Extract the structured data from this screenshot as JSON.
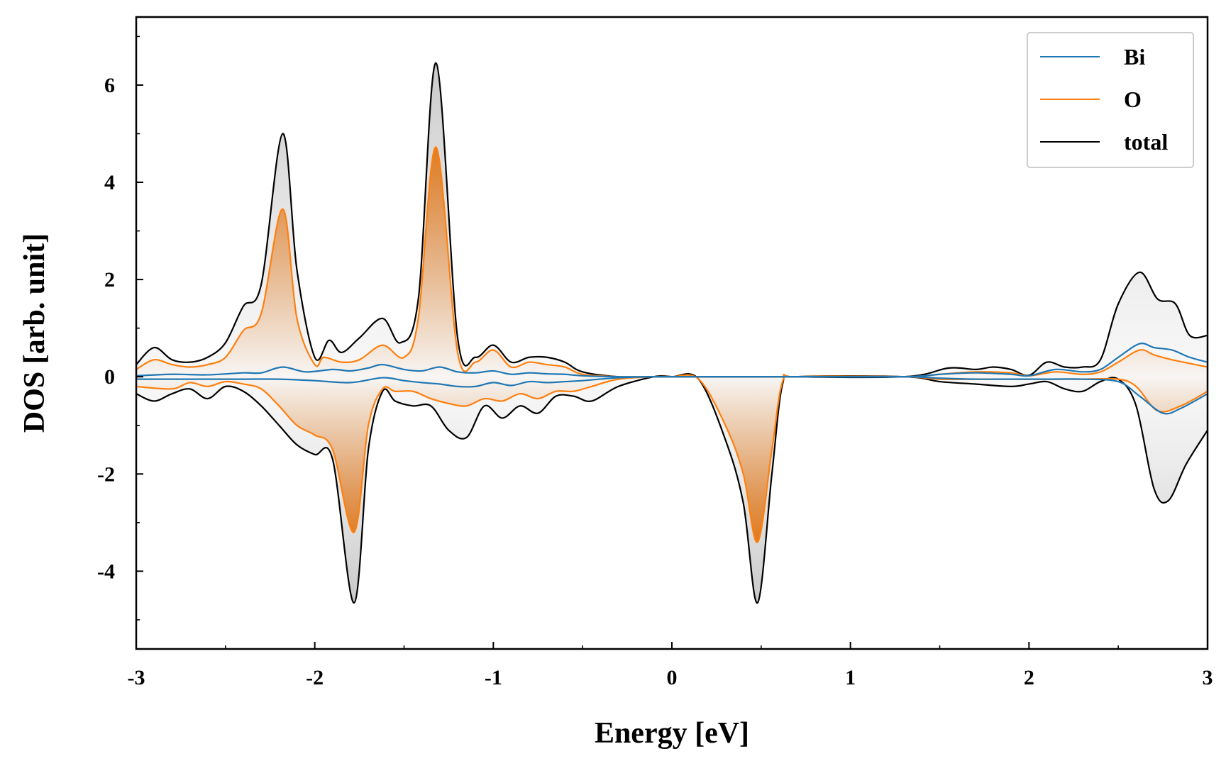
{
  "chart_data": {
    "type": "area",
    "title": "",
    "xlabel": "Energy [eV]",
    "ylabel": "DOS [arb. unit]",
    "xlim": [
      -3,
      3
    ],
    "ylim": [
      -5.6,
      7.4
    ],
    "xticks": [
      -3,
      -2,
      -1,
      0,
      1,
      2,
      3
    ],
    "xtick_labels": [
      "-3",
      "-2",
      "-1",
      "0",
      "1",
      "2",
      "3"
    ],
    "yticks": [
      -4,
      -2,
      0,
      2,
      4,
      6
    ],
    "ytick_labels": [
      "-4",
      "-2",
      "0",
      "2",
      "4",
      "6"
    ],
    "grid": false,
    "legend": {
      "position": "top-right",
      "entries": [
        "Bi",
        "O",
        "total"
      ]
    },
    "colors": {
      "Bi": "#1f77b4",
      "O": "#ff7f0e",
      "total": "#000000",
      "O_fill": "#e07a1f",
      "total_fill": "#d9d9d9"
    },
    "series": [
      {
        "name": "Bi",
        "spin_up": [
          [
            -3,
            0.02
          ],
          [
            -2.8,
            0.05
          ],
          [
            -2.6,
            0.04
          ],
          [
            -2.4,
            0.08
          ],
          [
            -2.3,
            0.08
          ],
          [
            -2.18,
            0.2
          ],
          [
            -2.05,
            0.1
          ],
          [
            -1.9,
            0.15
          ],
          [
            -1.8,
            0.12
          ],
          [
            -1.7,
            0.18
          ],
          [
            -1.62,
            0.25
          ],
          [
            -1.5,
            0.15
          ],
          [
            -1.4,
            0.12
          ],
          [
            -1.3,
            0.2
          ],
          [
            -1.2,
            0.1
          ],
          [
            -1.1,
            0.08
          ],
          [
            -1.0,
            0.12
          ],
          [
            -0.9,
            0.05
          ],
          [
            -0.8,
            0.08
          ],
          [
            -0.7,
            0.06
          ],
          [
            -0.6,
            0.05
          ],
          [
            -0.5,
            0.02
          ],
          [
            -0.3,
            0.0
          ],
          [
            -0.1,
            0.0
          ],
          [
            0,
            0
          ],
          [
            0.6,
            0
          ],
          [
            1.3,
            0
          ],
          [
            1.5,
            0.05
          ],
          [
            1.7,
            0.08
          ],
          [
            1.9,
            0.05
          ],
          [
            2.0,
            0.02
          ],
          [
            2.15,
            0.15
          ],
          [
            2.3,
            0.1
          ],
          [
            2.4,
            0.15
          ],
          [
            2.5,
            0.4
          ],
          [
            2.62,
            0.68
          ],
          [
            2.7,
            0.6
          ],
          [
            2.8,
            0.55
          ],
          [
            2.9,
            0.4
          ],
          [
            3,
            0.3
          ]
        ],
        "spin_down": [
          [
            -3,
            -0.05
          ],
          [
            -2.8,
            -0.05
          ],
          [
            -2.6,
            -0.05
          ],
          [
            -2.4,
            -0.05
          ],
          [
            -2.2,
            -0.05
          ],
          [
            -2.0,
            -0.08
          ],
          [
            -1.8,
            -0.12
          ],
          [
            -1.62,
            -0.02
          ],
          [
            -1.5,
            -0.08
          ],
          [
            -1.4,
            -0.12
          ],
          [
            -1.3,
            -0.15
          ],
          [
            -1.2,
            -0.2
          ],
          [
            -1.1,
            -0.2
          ],
          [
            -1.0,
            -0.12
          ],
          [
            -0.9,
            -0.18
          ],
          [
            -0.8,
            -0.1
          ],
          [
            -0.7,
            -0.12
          ],
          [
            -0.6,
            -0.1
          ],
          [
            -0.5,
            -0.08
          ],
          [
            -0.3,
            -0.02
          ],
          [
            -0.1,
            0.0
          ],
          [
            0,
            0
          ],
          [
            0.6,
            0
          ],
          [
            1.3,
            0
          ],
          [
            1.5,
            -0.03
          ],
          [
            1.7,
            -0.05
          ],
          [
            1.9,
            -0.05
          ],
          [
            2.1,
            -0.05
          ],
          [
            2.3,
            -0.05
          ],
          [
            2.5,
            -0.1
          ],
          [
            2.62,
            -0.4
          ],
          [
            2.75,
            -0.75
          ],
          [
            2.85,
            -0.65
          ],
          [
            3,
            -0.35
          ]
        ]
      },
      {
        "name": "O",
        "spin_up": [
          [
            -3,
            0.15
          ],
          [
            -2.9,
            0.35
          ],
          [
            -2.8,
            0.25
          ],
          [
            -2.7,
            0.2
          ],
          [
            -2.6,
            0.25
          ],
          [
            -2.5,
            0.4
          ],
          [
            -2.4,
            0.95
          ],
          [
            -2.3,
            1.3
          ],
          [
            -2.18,
            3.45
          ],
          [
            -2.1,
            1.2
          ],
          [
            -2.0,
            0.25
          ],
          [
            -1.95,
            0.4
          ],
          [
            -1.85,
            0.3
          ],
          [
            -1.75,
            0.35
          ],
          [
            -1.62,
            0.65
          ],
          [
            -1.5,
            0.4
          ],
          [
            -1.42,
            1.2
          ],
          [
            -1.32,
            4.72
          ],
          [
            -1.2,
            0.5
          ],
          [
            -1.1,
            0.3
          ],
          [
            -1.0,
            0.55
          ],
          [
            -0.9,
            0.2
          ],
          [
            -0.8,
            0.3
          ],
          [
            -0.7,
            0.25
          ],
          [
            -0.6,
            0.2
          ],
          [
            -0.5,
            0.05
          ],
          [
            -0.3,
            0.0
          ],
          [
            -0.1,
            0.0
          ],
          [
            0,
            0
          ],
          [
            0.6,
            0
          ],
          [
            1.3,
            0
          ],
          [
            1.5,
            0.05
          ],
          [
            1.7,
            0.1
          ],
          [
            1.9,
            0.08
          ],
          [
            2.0,
            0.02
          ],
          [
            2.15,
            0.1
          ],
          [
            2.3,
            0.05
          ],
          [
            2.4,
            0.1
          ],
          [
            2.5,
            0.3
          ],
          [
            2.62,
            0.55
          ],
          [
            2.7,
            0.45
          ],
          [
            2.8,
            0.35
          ],
          [
            3,
            0.2
          ]
        ],
        "spin_down": [
          [
            -3,
            -0.2
          ],
          [
            -2.8,
            -0.25
          ],
          [
            -2.7,
            -0.12
          ],
          [
            -2.6,
            -0.2
          ],
          [
            -2.5,
            -0.1
          ],
          [
            -2.4,
            -0.15
          ],
          [
            -2.3,
            -0.25
          ],
          [
            -2.2,
            -0.6
          ],
          [
            -2.1,
            -1.0
          ],
          [
            -2.0,
            -1.2
          ],
          [
            -1.9,
            -1.5
          ],
          [
            -1.78,
            -3.2
          ],
          [
            -1.7,
            -1.0
          ],
          [
            -1.62,
            -0.25
          ],
          [
            -1.55,
            -0.3
          ],
          [
            -1.45,
            -0.3
          ],
          [
            -1.35,
            -0.45
          ],
          [
            -1.25,
            -0.55
          ],
          [
            -1.15,
            -0.6
          ],
          [
            -1.05,
            -0.45
          ],
          [
            -0.95,
            -0.5
          ],
          [
            -0.85,
            -0.35
          ],
          [
            -0.75,
            -0.45
          ],
          [
            -0.65,
            -0.3
          ],
          [
            -0.55,
            -0.3
          ],
          [
            -0.45,
            -0.2
          ],
          [
            -0.3,
            -0.05
          ],
          [
            -0.1,
            0.0
          ],
          [
            0,
            0
          ],
          [
            0.15,
            -0.05
          ],
          [
            0.3,
            -1.0
          ],
          [
            0.4,
            -2.0
          ],
          [
            0.48,
            -3.4
          ],
          [
            0.56,
            -1.5
          ],
          [
            0.62,
            -0.1
          ],
          [
            0.7,
            0
          ],
          [
            1.3,
            0
          ],
          [
            1.5,
            -0.05
          ],
          [
            1.7,
            -0.05
          ],
          [
            1.9,
            -0.05
          ],
          [
            2.1,
            -0.05
          ],
          [
            2.3,
            -0.05
          ],
          [
            2.5,
            -0.05
          ],
          [
            2.6,
            -0.2
          ],
          [
            2.72,
            -0.7
          ],
          [
            2.85,
            -0.6
          ],
          [
            3,
            -0.3
          ]
        ]
      },
      {
        "name": "total",
        "spin_up": [
          [
            -3,
            0.25
          ],
          [
            -2.9,
            0.6
          ],
          [
            -2.8,
            0.35
          ],
          [
            -2.7,
            0.3
          ],
          [
            -2.6,
            0.4
          ],
          [
            -2.5,
            0.7
          ],
          [
            -2.4,
            1.45
          ],
          [
            -2.3,
            1.9
          ],
          [
            -2.18,
            5.0
          ],
          [
            -2.1,
            2.2
          ],
          [
            -2.0,
            0.4
          ],
          [
            -1.92,
            0.75
          ],
          [
            -1.85,
            0.5
          ],
          [
            -1.75,
            0.8
          ],
          [
            -1.62,
            1.2
          ],
          [
            -1.52,
            0.7
          ],
          [
            -1.42,
            1.6
          ],
          [
            -1.32,
            6.45
          ],
          [
            -1.2,
            0.8
          ],
          [
            -1.1,
            0.4
          ],
          [
            -1.0,
            0.65
          ],
          [
            -0.9,
            0.3
          ],
          [
            -0.8,
            0.4
          ],
          [
            -0.7,
            0.4
          ],
          [
            -0.6,
            0.3
          ],
          [
            -0.5,
            0.1
          ],
          [
            -0.3,
            0.0
          ],
          [
            -0.1,
            0.0
          ],
          [
            0,
            0
          ],
          [
            0.6,
            0
          ],
          [
            1.3,
            0
          ],
          [
            1.55,
            0.18
          ],
          [
            1.7,
            0.15
          ],
          [
            1.8,
            0.2
          ],
          [
            1.9,
            0.15
          ],
          [
            2.0,
            0.03
          ],
          [
            2.1,
            0.3
          ],
          [
            2.2,
            0.2
          ],
          [
            2.3,
            0.2
          ],
          [
            2.4,
            0.35
          ],
          [
            2.5,
            1.5
          ],
          [
            2.62,
            2.15
          ],
          [
            2.72,
            1.6
          ],
          [
            2.82,
            1.5
          ],
          [
            2.9,
            0.85
          ],
          [
            3,
            0.85
          ]
        ],
        "spin_down": [
          [
            -3,
            -0.35
          ],
          [
            -2.9,
            -0.5
          ],
          [
            -2.8,
            -0.35
          ],
          [
            -2.7,
            -0.25
          ],
          [
            -2.6,
            -0.45
          ],
          [
            -2.5,
            -0.2
          ],
          [
            -2.4,
            -0.3
          ],
          [
            -2.3,
            -0.6
          ],
          [
            -2.2,
            -1.0
          ],
          [
            -2.1,
            -1.4
          ],
          [
            -2.0,
            -1.6
          ],
          [
            -1.9,
            -1.7
          ],
          [
            -1.78,
            -4.65
          ],
          [
            -1.7,
            -1.5
          ],
          [
            -1.62,
            -0.3
          ],
          [
            -1.55,
            -0.5
          ],
          [
            -1.45,
            -0.6
          ],
          [
            -1.35,
            -0.6
          ],
          [
            -1.25,
            -1.1
          ],
          [
            -1.15,
            -1.25
          ],
          [
            -1.05,
            -0.6
          ],
          [
            -0.95,
            -0.85
          ],
          [
            -0.85,
            -0.6
          ],
          [
            -0.75,
            -0.75
          ],
          [
            -0.65,
            -0.4
          ],
          [
            -0.55,
            -0.4
          ],
          [
            -0.45,
            -0.5
          ],
          [
            -0.3,
            -0.2
          ],
          [
            -0.1,
            0.0
          ],
          [
            0,
            0
          ],
          [
            0.15,
            -0.05
          ],
          [
            0.3,
            -1.3
          ],
          [
            0.4,
            -2.6
          ],
          [
            0.48,
            -4.65
          ],
          [
            0.56,
            -2.0
          ],
          [
            0.62,
            -0.15
          ],
          [
            0.7,
            0
          ],
          [
            1.3,
            0
          ],
          [
            1.5,
            -0.1
          ],
          [
            1.7,
            -0.15
          ],
          [
            1.9,
            -0.2
          ],
          [
            2.0,
            -0.15
          ],
          [
            2.1,
            -0.1
          ],
          [
            2.2,
            -0.25
          ],
          [
            2.3,
            -0.3
          ],
          [
            2.4,
            -0.1
          ],
          [
            2.5,
            -0.05
          ],
          [
            2.6,
            -0.6
          ],
          [
            2.7,
            -2.3
          ],
          [
            2.78,
            -2.55
          ],
          [
            2.88,
            -1.8
          ],
          [
            3,
            -1.1
          ]
        ]
      }
    ]
  }
}
